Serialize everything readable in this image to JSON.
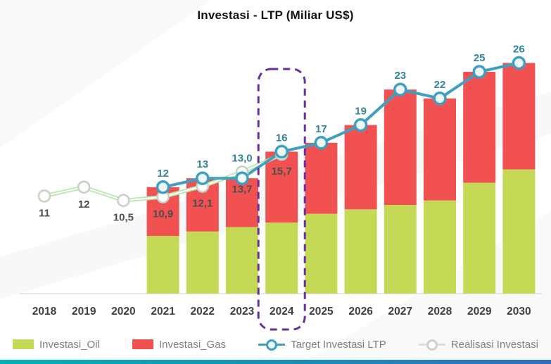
{
  "title": "Investasi - LTP (Miliar US$)",
  "legend": [
    {
      "label": "Investasi_Oil"
    },
    {
      "label": "Investasi_Gas"
    },
    {
      "label": "Target Investasi LTP"
    },
    {
      "label": "Realisasi Investasi"
    }
  ],
  "colors": {
    "oil": "#c6d957",
    "gas": "#f15151",
    "target_line": "#3f9fc0",
    "target_marker_fill": "#eef8fb",
    "target_label": "#31849b",
    "realisasi_line": "#b9e7ae",
    "realisasi_marker_stroke": "#c6d3c2",
    "realisasi_legend_line": "#dcdcdc",
    "realisasi_legend_ring": "#cfcfcf",
    "value_label_dark": "#4d4d4d",
    "axis_line": "#d9d9d9",
    "year_label": "#3f3f3f",
    "highlight_border": "#6a2f9f",
    "title_text": "#111111",
    "legend_text": "#7f7f7f",
    "footer_gradient_left": "#00b2b4",
    "footer_gradient_right": "#2f6fbd"
  },
  "chart_data": {
    "type": "combo",
    "title": "Investasi - LTP (Miliar US$)",
    "categories": [
      "2018",
      "2019",
      "2020",
      "2021",
      "2022",
      "2023",
      "2024",
      "2025",
      "2026",
      "2027",
      "2028",
      "2029",
      "2030"
    ],
    "ylim": [
      0,
      28
    ],
    "grid": false,
    "legend_position": "bottom",
    "highlight": {
      "category": "2024"
    },
    "series": [
      {
        "name": "Investasi_Oil",
        "type": "bar",
        "stack": "investasi",
        "values": [
          null,
          null,
          null,
          6.5,
          7.0,
          7.5,
          8.0,
          9.0,
          9.5,
          10.0,
          10.5,
          12.5,
          14.0
        ]
      },
      {
        "name": "Investasi_Gas",
        "type": "bar",
        "stack": "investasi",
        "values": [
          null,
          null,
          null,
          5.5,
          6.0,
          5.5,
          8.0,
          8.0,
          9.5,
          13.0,
          11.5,
          12.5,
          12.0
        ]
      },
      {
        "name": "Target Investasi LTP",
        "type": "line",
        "values": [
          null,
          null,
          null,
          12,
          13,
          13.0,
          16,
          17,
          19,
          23,
          22,
          25,
          26
        ],
        "labels": [
          null,
          null,
          null,
          "12",
          "13",
          "13,0",
          "16",
          "17",
          "19",
          "23",
          "22",
          "25",
          "26"
        ]
      },
      {
        "name": "Realisasi Investasi",
        "type": "line",
        "values": [
          11,
          12,
          10.5,
          10.9,
          12.1,
          13.7,
          15.7,
          null,
          null,
          null,
          null,
          null,
          null
        ],
        "labels": [
          "11",
          "12",
          "10,5",
          "10,9",
          "12,1",
          "13,7",
          "15,7",
          null,
          null,
          null,
          null,
          null,
          null
        ]
      }
    ]
  }
}
